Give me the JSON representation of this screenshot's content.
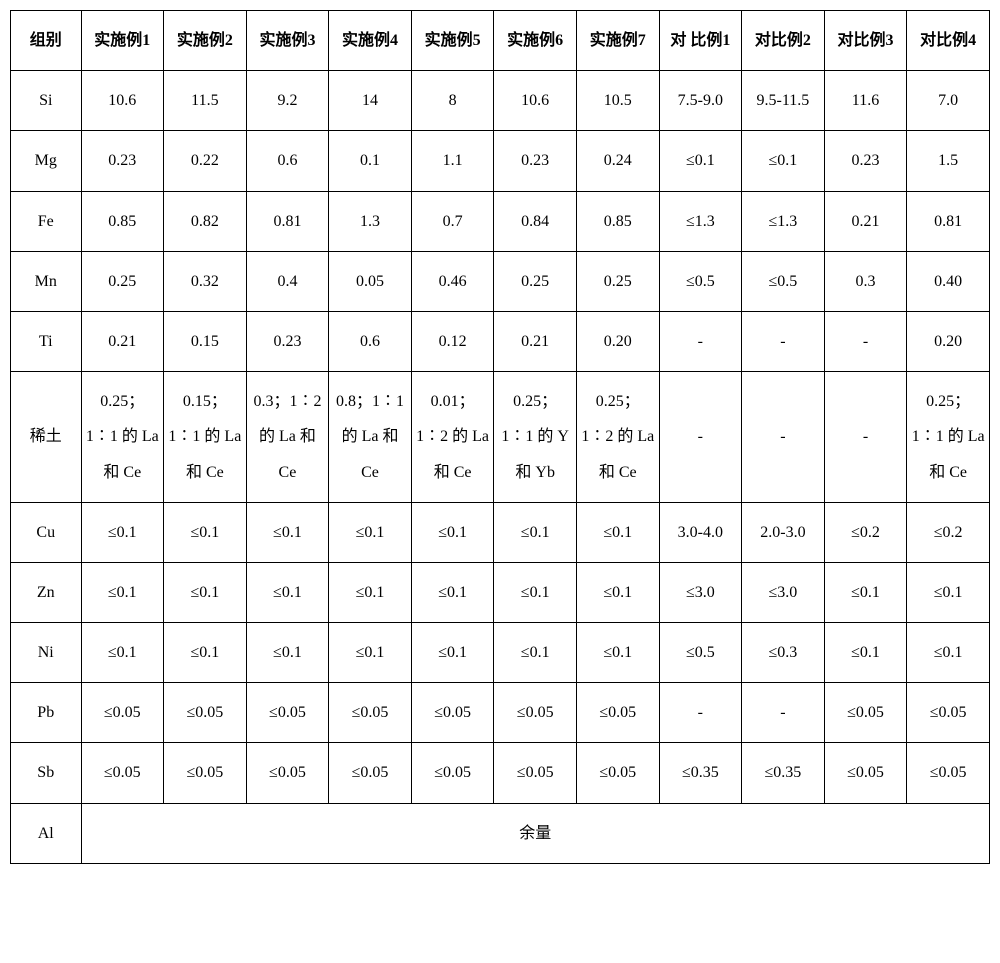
{
  "table": {
    "header": [
      "组别",
      "实施例1",
      "实施例2",
      "实施例3",
      "实施例4",
      "实施例5",
      "实施例6",
      "实施例7",
      "对 比例1",
      "对比例2",
      "对比例3",
      "对比例4"
    ],
    "rows": [
      {
        "label": "Si",
        "cells": [
          "10.6",
          "11.5",
          "9.2",
          "14",
          "8",
          "10.6",
          "10.5",
          "7.5-9.0",
          "9.5-11.5",
          "11.6",
          "7.0"
        ]
      },
      {
        "label": "Mg",
        "cells": [
          "0.23",
          "0.22",
          "0.6",
          "0.1",
          "1.1",
          "0.23",
          "0.24",
          "≤0.1",
          "≤0.1",
          "0.23",
          "1.5"
        ]
      },
      {
        "label": "Fe",
        "cells": [
          "0.85",
          "0.82",
          "0.81",
          "1.3",
          "0.7",
          "0.84",
          "0.85",
          "≤1.3",
          "≤1.3",
          "0.21",
          "0.81"
        ]
      },
      {
        "label": "Mn",
        "cells": [
          "0.25",
          "0.32",
          "0.4",
          "0.05",
          "0.46",
          "0.25",
          "0.25",
          "≤0.5",
          "≤0.5",
          "0.3",
          "0.40"
        ]
      },
      {
        "label": "Ti",
        "cells": [
          "0.21",
          "0.15",
          "0.23",
          "0.6",
          "0.12",
          "0.21",
          "0.20",
          "-",
          "-",
          "-",
          "0.20"
        ]
      },
      {
        "label": "稀土",
        "cells": [
          "0.25；1∶1 的 La 和 Ce",
          "0.15；1∶1 的 La 和 Ce",
          "0.3；1∶2 的 La 和 Ce",
          "0.8；1∶1 的 La 和 Ce",
          "0.01；1∶2 的 La 和 Ce",
          "0.25；1∶1 的 Y 和 Yb",
          "0.25；1∶2 的 La 和 Ce",
          "-",
          "-",
          "-",
          "0.25；1∶1 的 La 和 Ce"
        ]
      },
      {
        "label": "Cu",
        "cells": [
          "≤0.1",
          "≤0.1",
          "≤0.1",
          "≤0.1",
          "≤0.1",
          "≤0.1",
          "≤0.1",
          "3.0-4.0",
          "2.0-3.0",
          "≤0.2",
          "≤0.2"
        ]
      },
      {
        "label": "Zn",
        "cells": [
          "≤0.1",
          "≤0.1",
          "≤0.1",
          "≤0.1",
          "≤0.1",
          "≤0.1",
          "≤0.1",
          "≤3.0",
          "≤3.0",
          "≤0.1",
          "≤0.1"
        ]
      },
      {
        "label": "Ni",
        "cells": [
          "≤0.1",
          "≤0.1",
          "≤0.1",
          "≤0.1",
          "≤0.1",
          "≤0.1",
          "≤0.1",
          "≤0.5",
          "≤0.3",
          "≤0.1",
          "≤0.1"
        ]
      },
      {
        "label": "Pb",
        "cells": [
          "≤0.05",
          "≤0.05",
          "≤0.05",
          "≤0.05",
          "≤0.05",
          "≤0.05",
          "≤0.05",
          "-",
          "-",
          "≤0.05",
          "≤0.05"
        ]
      },
      {
        "label": "Sb",
        "cells": [
          "≤0.05",
          "≤0.05",
          "≤0.05",
          "≤0.05",
          "≤0.05",
          "≤0.05",
          "≤0.05",
          "≤0.35",
          "≤0.35",
          "≤0.05",
          "≤0.05"
        ]
      }
    ],
    "footer": {
      "label": "Al",
      "value": "余量"
    },
    "border_color": "#000000",
    "background_color": "#ffffff",
    "font_family": "SimSun",
    "cell_fontsize": 16
  }
}
